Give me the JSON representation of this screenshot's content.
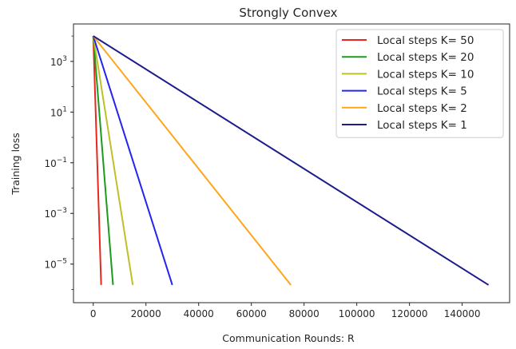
{
  "chart_data": {
    "type": "line",
    "title": "Strongly Convex",
    "xlabel": "Communication Rounds: R",
    "ylabel": "Training loss",
    "y_scale": "log",
    "xlim": [
      -7500,
      158000
    ],
    "ylim": [
      3e-07,
      30000
    ],
    "x_ticks": [
      0,
      20000,
      40000,
      60000,
      80000,
      100000,
      120000,
      140000
    ],
    "y_ticks": [
      {
        "value": 1000,
        "base": "10",
        "exp": "3"
      },
      {
        "value": 10,
        "base": "10",
        "exp": "1"
      },
      {
        "value": 0.1,
        "base": "10",
        "exp": "−1"
      },
      {
        "value": 0.001,
        "base": "10",
        "exp": "−3"
      },
      {
        "value": 1e-05,
        "base": "10",
        "exp": "−5"
      }
    ],
    "grid": false,
    "legend_position": "top-right",
    "series": [
      {
        "name": "Local steps K= 50",
        "color": "#e8281e",
        "x": [
          0,
          3000
        ],
        "y": [
          10000,
          1.5e-06
        ]
      },
      {
        "name": "Local steps K= 20",
        "color": "#1e9a1e",
        "x": [
          0,
          7500
        ],
        "y": [
          10000,
          1.5e-06
        ]
      },
      {
        "name": "Local steps K= 10",
        "color": "#bfbf2a",
        "x": [
          0,
          15000
        ],
        "y": [
          10000,
          1.5e-06
        ]
      },
      {
        "name": "Local steps K= 5",
        "color": "#2424f0",
        "x": [
          0,
          30000
        ],
        "y": [
          10000,
          1.5e-06
        ]
      },
      {
        "name": "Local steps K= 2",
        "color": "#ffa61a",
        "x": [
          0,
          75000
        ],
        "y": [
          10000,
          1.5e-06
        ]
      },
      {
        "name": "Local steps K= 1",
        "color": "#1c1c8c",
        "x": [
          0,
          150000
        ],
        "y": [
          10000,
          1.5e-06
        ]
      }
    ]
  }
}
